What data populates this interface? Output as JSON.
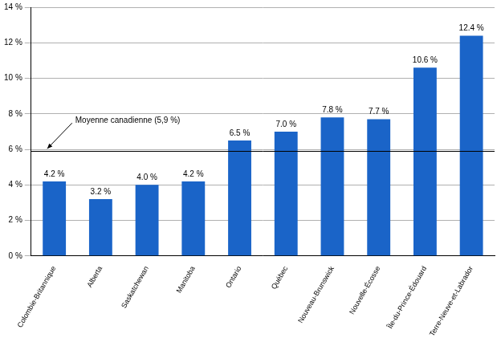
{
  "chart_data": {
    "type": "bar",
    "categories": [
      "Colombie-Britannique",
      "Alberta",
      "Saskatchewan",
      "Manitoba",
      "Ontario",
      "Québec",
      "Nouveau-Brunswick",
      "Nouvelle-Écosse",
      "Île-du-Prince-Édouard",
      "Terre-Neuve-et-Labrador"
    ],
    "values": [
      4.2,
      3.2,
      4.0,
      4.2,
      6.5,
      7.0,
      7.8,
      7.7,
      10.6,
      12.4
    ],
    "value_labels": [
      "4.2 %",
      "3.2 %",
      "4.0 %",
      "4.2 %",
      "6.5 %",
      "7.0 %",
      "7.8 %",
      "7.7 %",
      "10.6 %",
      "12.4 %"
    ],
    "data_labels": true,
    "color": "#1a64c8",
    "ylim": [
      0,
      14
    ],
    "yticks": [
      {
        "value": 0,
        "label": "0 %"
      },
      {
        "value": 2,
        "label": "2 %"
      },
      {
        "value": 4,
        "label": "4 %"
      },
      {
        "value": 6,
        "label": "6 %"
      },
      {
        "value": 8,
        "label": "8 %"
      },
      {
        "value": 10,
        "label": "10 %"
      },
      {
        "value": 12,
        "label": "12 %"
      },
      {
        "value": 14,
        "label": "14 %"
      }
    ],
    "grid": true,
    "annotations": [
      {
        "label": "Moyenne canadienne (5,9 %)",
        "value": 5.9
      }
    ]
  }
}
